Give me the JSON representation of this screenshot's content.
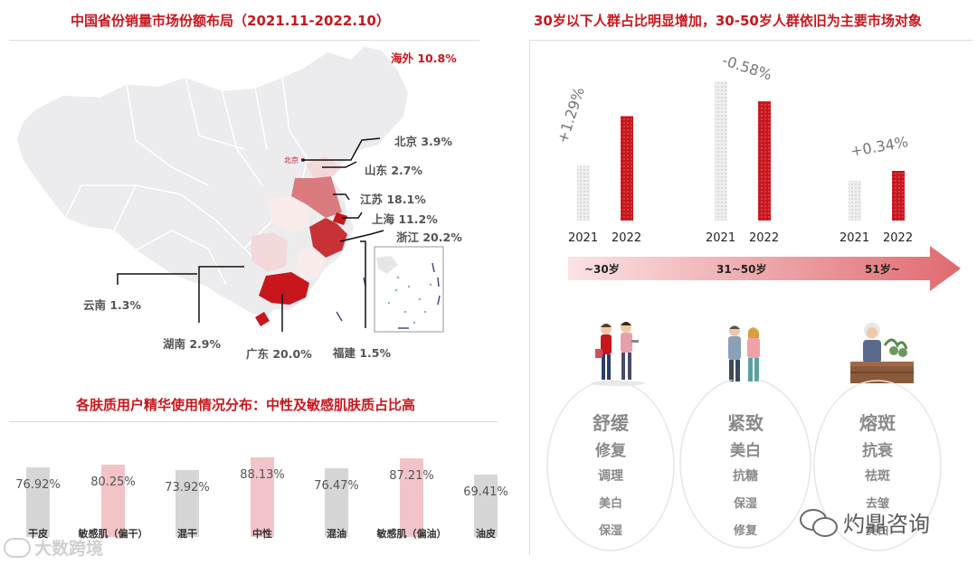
{
  "map_panel": {
    "title": "中国省份销量市场份额布局（2021.11-2022.10）",
    "overseas": "海外 10.8%",
    "beijing_marker": "北京",
    "regions": [
      {
        "label": "北京 3.9%"
      },
      {
        "label": "山东 2.7%"
      },
      {
        "label": "江苏 18.1%"
      },
      {
        "label": "上海 11.2%"
      },
      {
        "label": "浙江 20.2%"
      },
      {
        "label": "云南 1.3%"
      },
      {
        "label": "湖南 2.9%"
      },
      {
        "label": "广东 20.0%"
      },
      {
        "label": "福建 1.5%"
      }
    ]
  },
  "age_panel": {
    "title": "30岁以下人群占比明显增加，30-50岁人群依旧为主要市场对象",
    "arrow_labels": [
      "~30岁",
      "31~50岁",
      "51岁~"
    ]
  },
  "needs": [
    {
      "lines": [
        "舒缓",
        "修复",
        "调理",
        "美白",
        "保湿"
      ]
    },
    {
      "lines": [
        "紧致",
        "美白",
        "抗糖",
        "保湿",
        "修复"
      ]
    },
    {
      "lines": [
        "熔斑",
        "抗衰",
        "祛斑",
        "去皱",
        "美白"
      ]
    }
  ],
  "skin_panel": {
    "title": "各肤质用户精华使用情况分布：中性及敏感肌肤质占比高"
  },
  "chart_data": [
    {
      "type": "bar",
      "title": "各肤质用户精华使用情况分布：中性及敏感肌肤质占比高",
      "categories": [
        "干皮",
        "敏感肌（偏干）",
        "混干",
        "中性",
        "混油",
        "敏感肌（偏油）",
        "油皮"
      ],
      "values": [
        76.92,
        80.25,
        73.92,
        88.13,
        76.47,
        87.21,
        69.41
      ],
      "value_labels": [
        "76.92%",
        "80.25%",
        "73.92%",
        "88.13%",
        "76.47%",
        "87.21%",
        "69.41%"
      ],
      "highlight_indices": [
        1,
        3,
        5
      ],
      "colors": {
        "normal": "#d6d6d6",
        "highlight": "#f2c4c7"
      },
      "ylim": [
        0,
        100
      ]
    },
    {
      "type": "bar",
      "title": "30岁以下人群占比明显增加，30-50岁人群依旧为主要市场对象",
      "categories": [
        "~30岁",
        "31~50岁",
        "51岁~"
      ],
      "x": [
        "2021",
        "2022"
      ],
      "groups": [
        {
          "values": [
            0.55,
            1.05
          ],
          "change": "+1.29%"
        },
        {
          "values": [
            1.4,
            1.2
          ],
          "change": "-0.58%"
        },
        {
          "values": [
            0.4,
            0.5
          ],
          "change": "+0.34%"
        }
      ],
      "colors": {
        "2021": "#e8e8e8",
        "2022": "#c8161d"
      }
    }
  ],
  "watermarks": {
    "left": "大数跨境",
    "right": "灼鼎咨询"
  },
  "colors": {
    "accent": "#c8161d",
    "map_gray": "#ececee"
  }
}
